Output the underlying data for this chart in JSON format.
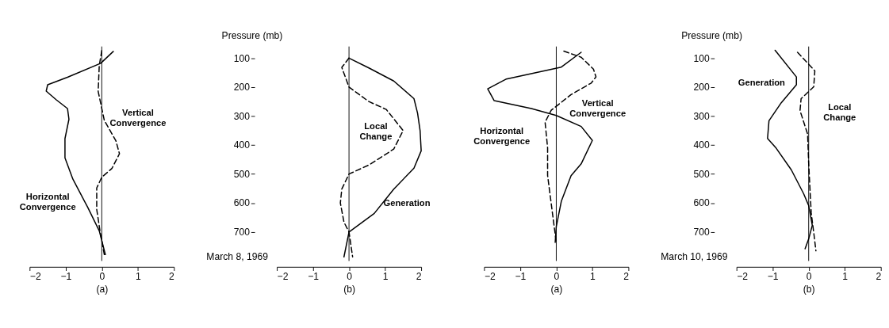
{
  "chart_data": [
    {
      "type": "line",
      "xlabel": "(a)",
      "xlim": [
        -2,
        2
      ],
      "xticks": [
        -2,
        -1,
        0,
        1,
        2
      ],
      "ylim": [
        800,
        60
      ],
      "yticks": [
        100,
        200,
        300,
        400,
        500,
        600,
        700
      ],
      "tick_labels": "x",
      "grid": false,
      "ref_lines": [
        {
          "axis": "x",
          "value": 0
        }
      ],
      "series": [
        {
          "name": "Horizontal Convergence",
          "color": "#000000",
          "line_style": "solid",
          "x": [
            0.32,
            -0.03,
            -0.95,
            -1.5,
            -1.54,
            -1.26,
            -0.95,
            -0.91,
            -1.02,
            -1.02,
            -0.8,
            -0.39,
            -0.07,
            0.1
          ],
          "values": [
            77,
            118,
            166,
            192,
            214,
            244,
            274,
            311,
            378,
            444,
            518,
            615,
            696,
            778
          ]
        },
        {
          "name": "Vertical Convergence",
          "color": "#000000",
          "line_style": "dashed",
          "x": [
            0,
            -0.07,
            -0.1,
            0.07,
            0.39,
            0.49,
            0.28,
            0,
            -0.14,
            -0.14,
            -0.05,
            0.07
          ],
          "values": [
            74,
            126,
            215,
            315,
            385,
            430,
            481,
            511,
            548,
            622,
            696,
            778
          ]
        }
      ]
    },
    {
      "type": "line",
      "xlabel": "(b)",
      "ylabel": "Pressure (mb)",
      "xlim": [
        -2,
        2
      ],
      "xticks": [
        -2,
        -1,
        0,
        1,
        2
      ],
      "ylim": [
        800,
        60
      ],
      "yticks": [
        100,
        200,
        300,
        400,
        500,
        600,
        700
      ],
      "grid": false,
      "ref_lines": [
        {
          "axis": "x",
          "value": 0
        }
      ],
      "series": [
        {
          "name": "Generation",
          "color": "#000000",
          "line_style": "solid",
          "x": [
            0,
            0.55,
            1.24,
            1.8,
            1.9,
            1.97,
            2.0,
            1.8,
            1.24,
            0.7,
            0,
            -0.14
          ],
          "values": [
            100,
            134,
            179,
            240,
            290,
            350,
            420,
            480,
            552,
            636,
            700,
            786
          ]
        },
        {
          "name": "Local Change",
          "color": "#000000",
          "line_style": "dashed",
          "x": [
            0,
            -0.2,
            0,
            0.55,
            1.03,
            1.5,
            1.24,
            0.55,
            0,
            -0.2,
            -0.24,
            -0.14,
            0,
            0.1
          ],
          "values": [
            100,
            132,
            200,
            250,
            277,
            350,
            414,
            469,
            500,
            552,
            600,
            666,
            700,
            786
          ]
        }
      ],
      "annotations": [
        "March 8, 1969"
      ]
    },
    {
      "type": "line",
      "xlabel": "(a)",
      "xlim": [
        -2,
        2
      ],
      "xticks": [
        -2,
        -1,
        0,
        1,
        2
      ],
      "ylim": [
        800,
        60
      ],
      "yticks": [
        100,
        200,
        300,
        400,
        500,
        600,
        700
      ],
      "tick_labels": "x",
      "grid": false,
      "ref_lines": [
        {
          "axis": "x",
          "value": 0
        }
      ],
      "series": [
        {
          "name": "Horizontal Convergence",
          "color": "#000000",
          "line_style": "solid",
          "x": [
            0.69,
            0.14,
            -1.38,
            -1.9,
            -1.72,
            -0.69,
            0,
            0.69,
            1.0,
            0.69,
            0.41,
            0.14,
            0,
            -0.03
          ],
          "values": [
            80,
            131,
            172,
            206,
            247,
            274,
            298,
            336,
            384,
            465,
            506,
            594,
            682,
            736
          ]
        },
        {
          "name": "Vertical Convergence",
          "color": "#000000",
          "line_style": "dashed",
          "x": [
            0.21,
            0.69,
            1.03,
            1.1,
            0.97,
            0.41,
            -0.14,
            -0.31,
            -0.24,
            -0.24,
            -0.1,
            0
          ],
          "values": [
            76,
            97,
            138,
            165,
            186,
            226,
            280,
            321,
            410,
            505,
            641,
            736
          ]
        }
      ]
    },
    {
      "type": "line",
      "xlabel": "(b)",
      "ylabel": "Pressure (mb)",
      "xlim": [
        -2,
        2
      ],
      "xticks": [
        -2,
        -1,
        0,
        1,
        2
      ],
      "ylim": [
        800,
        60
      ],
      "yticks": [
        100,
        200,
        300,
        400,
        500,
        600,
        700
      ],
      "grid": false,
      "ref_lines": [
        {
          "axis": "x",
          "value": 0
        }
      ],
      "series": [
        {
          "name": "Generation",
          "color": "#000000",
          "line_style": "solid",
          "x": [
            -0.93,
            -0.34,
            -0.34,
            -0.76,
            -1.1,
            -1.14,
            -0.9,
            -0.48,
            -0.14,
            0,
            0.1,
            0,
            -0.1
          ],
          "values": [
            73,
            165,
            192,
            254,
            316,
            377,
            411,
            486,
            568,
            609,
            677,
            724,
            758
          ]
        },
        {
          "name": "Local Change",
          "color": "#000000",
          "line_style": "dashed",
          "x": [
            -0.31,
            0.17,
            0.14,
            -0.21,
            -0.24,
            -0.03,
            0,
            0.07,
            0.14,
            0.2
          ],
          "values": [
            80,
            144,
            199,
            240,
            281,
            362,
            464,
            634,
            702,
            765
          ]
        }
      ],
      "annotations": [
        "March 10, 1969"
      ]
    }
  ]
}
